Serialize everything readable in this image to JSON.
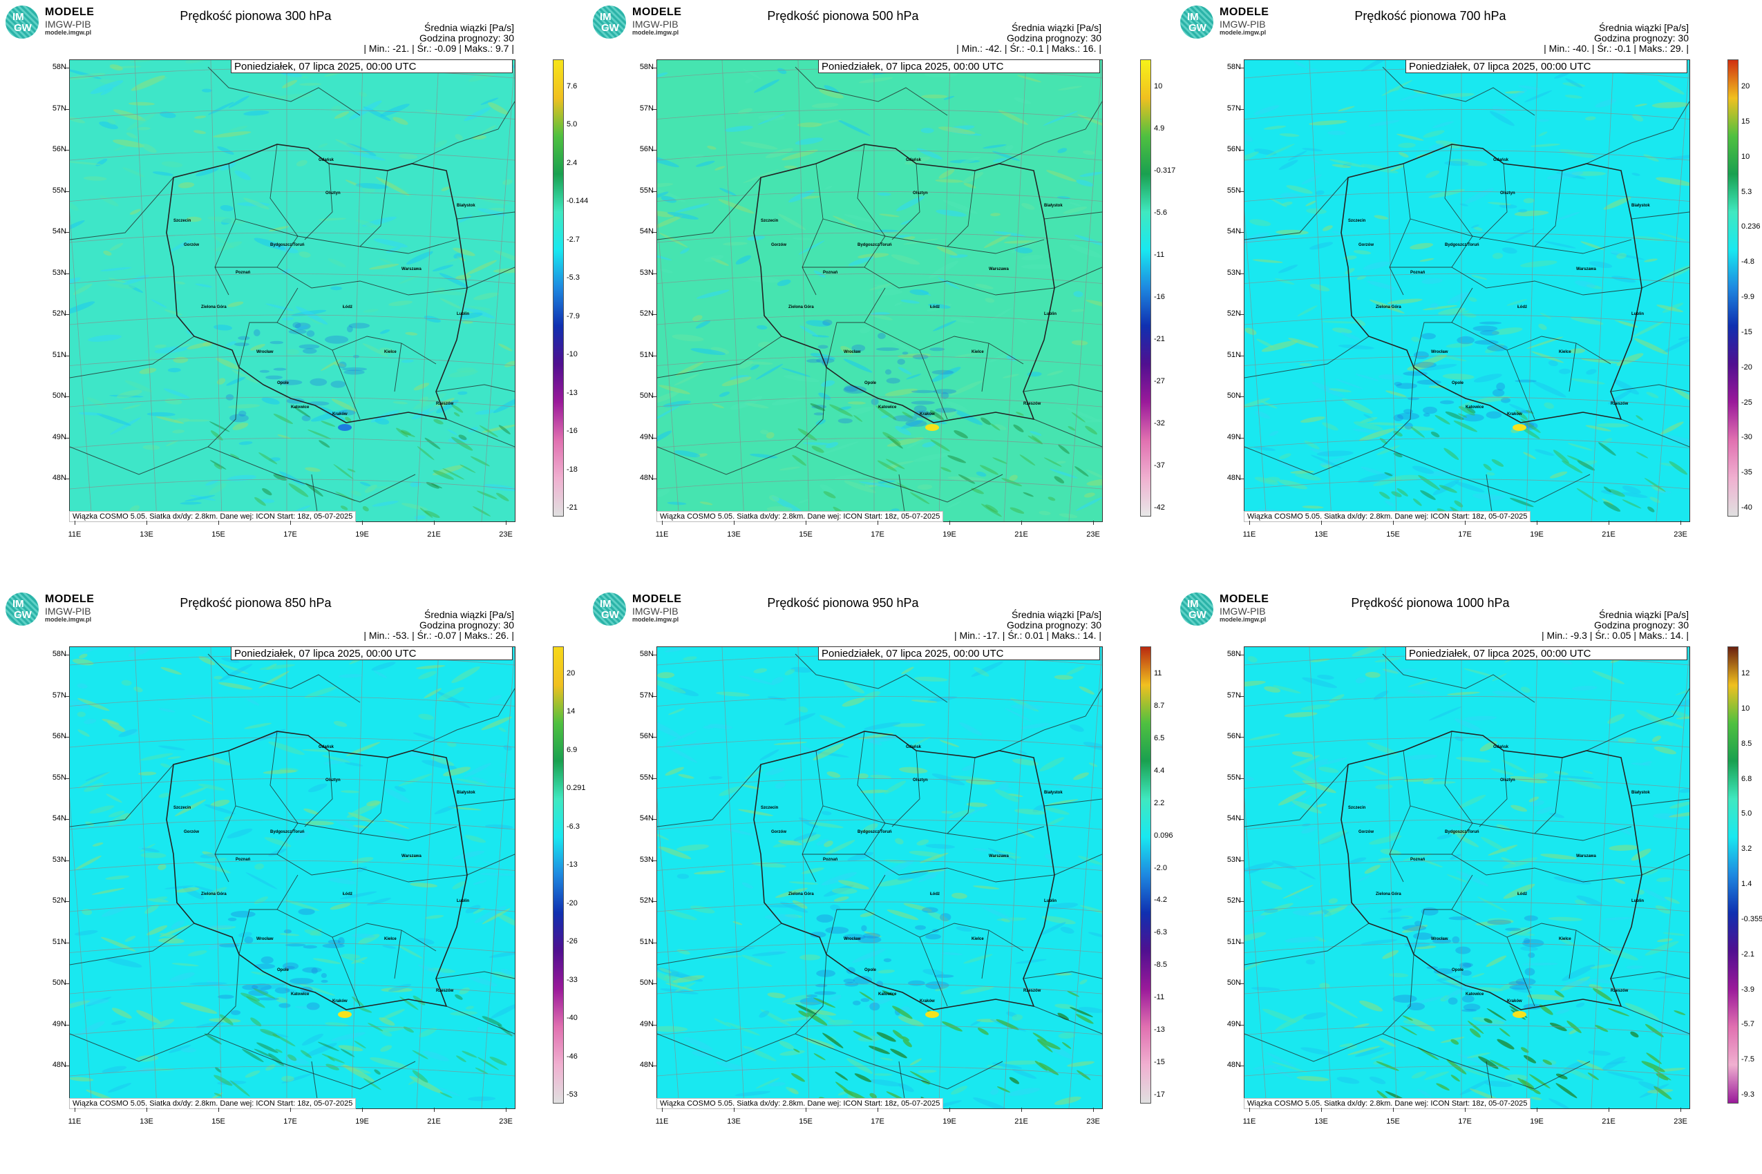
{
  "logo": {
    "brand": "MODELE",
    "sub": "IMGW-PIB",
    "url": "modele.imgw.pl",
    "mark_top": "IM",
    "mark_bottom": "GW"
  },
  "common": {
    "unit_label": "Średnia wiązki [Pa/s]",
    "forecast_hour": "Godzina prognozy: 30",
    "date": "Poniedziałek, 07 lipca 2025, 00:00 UTC",
    "footer": "Wiązka COSMO 5.05. Siatka dx/dy: 2.8km. Dane wej: ICON Start: 18z, 05-07-2025",
    "lat_labels": [
      "58N",
      "57N",
      "56N",
      "55N",
      "54N",
      "53N",
      "52N",
      "51N",
      "50N",
      "49N",
      "48N"
    ],
    "lon_labels": [
      "11E",
      "13E",
      "15E",
      "17E",
      "19E",
      "21E",
      "23E"
    ]
  },
  "cities": [
    "Gdańsk",
    "Olsztyn",
    "Szczecin",
    "Gorzów",
    "Bydgoszcz/Toruń",
    "Białystok",
    "Poznań",
    "Warszawa",
    "Zielona Góra",
    "Łódź",
    "Lublin",
    "Wrocław",
    "Opole",
    "Kielce",
    "Katowice",
    "Kraków",
    "Rzeszów"
  ],
  "colors": {
    "field": "#46e4b0",
    "field_alt": "#19e8f0",
    "blue": "#1e7ce0",
    "yellow": "#f5e21d",
    "border": "#222222",
    "grid": "#8a8a8a"
  },
  "panels": [
    {
      "title": "Prędkość pionowa 300 hPa",
      "stats": "| Min.: -21. | Śr.: -0.09 | Maks.: 9.7 |",
      "scale": [
        "7.6",
        "5.0",
        "2.4",
        "-0.144",
        "-2.7",
        "-5.3",
        "-7.9",
        "-10",
        "-13",
        "-16",
        "-18",
        "-21"
      ],
      "top_color": "#f7e41a",
      "bottom_color": "#e0e0e0",
      "field_tone": "cyan-green"
    },
    {
      "title": "Prędkość pionowa 500 hPa",
      "stats": "| Min.: -42. | Śr.: -0.1 | Maks.: 16. |",
      "scale": [
        "10",
        "4.9",
        "-0.317",
        "-5.6",
        "-11",
        "-16",
        "-21",
        "-27",
        "-32",
        "-37",
        "-42"
      ],
      "top_color": "#f7f21a",
      "bottom_color": "#e8e8e8",
      "field_tone": "green"
    },
    {
      "title": "Prędkość pionowa 700 hPa",
      "stats": "| Min.: -40. | Śr.: -0.1 | Maks.: 29. |",
      "scale": [
        "20",
        "15",
        "10",
        "5.3",
        "0.236",
        "-4.8",
        "-9.9",
        "-15",
        "-20",
        "-25",
        "-30",
        "-35",
        "-40"
      ],
      "top_color": "#d03010",
      "bottom_color": "#e0e0e0",
      "field_tone": "cyan"
    },
    {
      "title": "Prędkość pionowa 850 hPa",
      "stats": "| Min.: -53. | Śr.: -0.07 | Maks.: 26. |",
      "scale": [
        "20",
        "14",
        "6.9",
        "0.291",
        "-6.3",
        "-13",
        "-20",
        "-26",
        "-33",
        "-40",
        "-46",
        "-53"
      ],
      "top_color": "#f7d81a",
      "bottom_color": "#e0e0e0",
      "field_tone": "cyan"
    },
    {
      "title": "Prędkość pionowa 950 hPa",
      "stats": "| Min.: -17. | Śr.: 0.01 | Maks.: 14. |",
      "scale": [
        "11",
        "8.7",
        "6.5",
        "4.4",
        "2.2",
        "0.096",
        "-2.0",
        "-4.2",
        "-6.3",
        "-8.5",
        "-11",
        "-13",
        "-15",
        "-17"
      ],
      "top_color": "#b82a10",
      "bottom_color": "#e0e0e0",
      "field_tone": "cyan"
    },
    {
      "title": "Prędkość pionowa 1000 hPa",
      "stats": "| Min.: -9.3 | Śr.: 0.05 | Maks.: 14. |",
      "scale": [
        "12",
        "10",
        "8.5",
        "6.8",
        "5.0",
        "3.2",
        "1.4",
        "-0.355",
        "-2.1",
        "-3.9",
        "-5.7",
        "-7.5",
        "-9.3"
      ],
      "top_color": "#6a2010",
      "bottom_color": "#9a1a9a",
      "field_tone": "cyan"
    }
  ]
}
